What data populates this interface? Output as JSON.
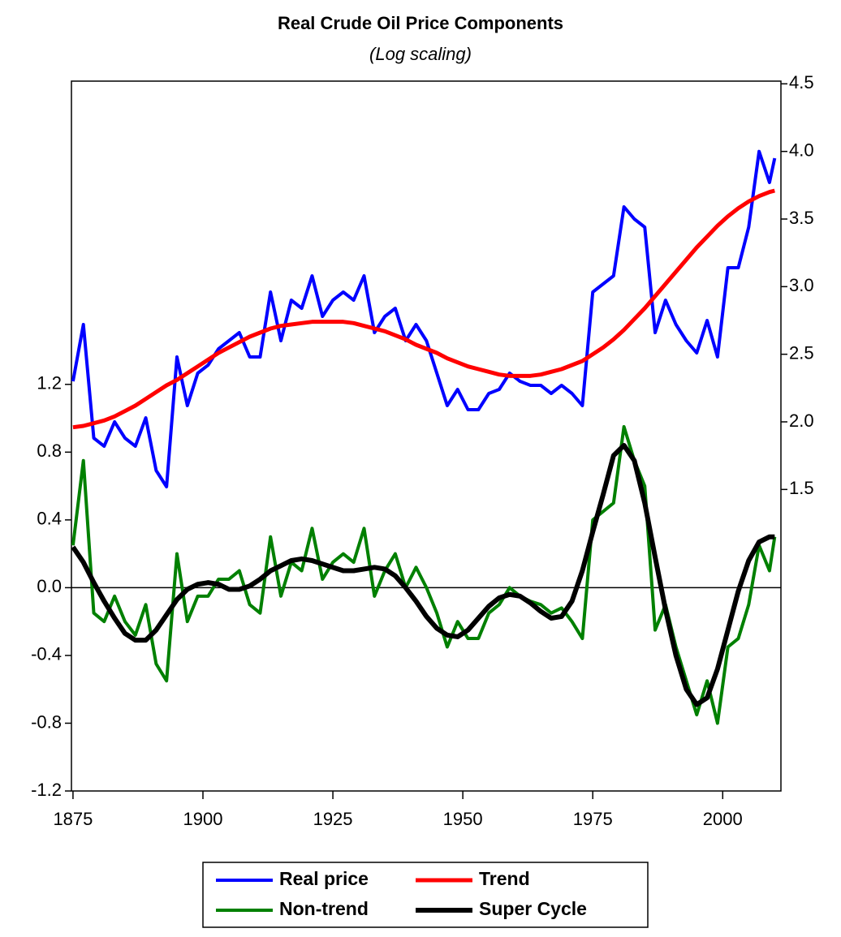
{
  "chart_data": {
    "type": "line",
    "title": "Real Crude Oil Price Components",
    "subtitle": "(Log scaling)",
    "x": [
      1875,
      1877,
      1879,
      1881,
      1883,
      1885,
      1887,
      1889,
      1891,
      1893,
      1895,
      1897,
      1899,
      1901,
      1903,
      1905,
      1907,
      1909,
      1911,
      1913,
      1915,
      1917,
      1919,
      1921,
      1923,
      1925,
      1927,
      1929,
      1931,
      1933,
      1935,
      1937,
      1939,
      1941,
      1943,
      1945,
      1947,
      1949,
      1951,
      1953,
      1955,
      1957,
      1959,
      1961,
      1963,
      1965,
      1967,
      1969,
      1971,
      1973,
      1975,
      1977,
      1979,
      1981,
      1983,
      1985,
      1987,
      1989,
      1991,
      1993,
      1995,
      1997,
      1999,
      2001,
      2003,
      2005,
      2007,
      2009,
      2010
    ],
    "series": [
      {
        "name": "Real price",
        "color": "#0000ff",
        "axis": "y2",
        "width": 4,
        "values": [
          2.3,
          2.72,
          1.88,
          1.82,
          2.0,
          1.88,
          1.82,
          2.03,
          1.64,
          1.52,
          2.48,
          2.12,
          2.36,
          2.42,
          2.54,
          2.6,
          2.66,
          2.48,
          2.48,
          2.96,
          2.6,
          2.9,
          2.84,
          3.08,
          2.78,
          2.9,
          2.96,
          2.9,
          3.08,
          2.66,
          2.78,
          2.84,
          2.6,
          2.72,
          2.6,
          2.36,
          2.12,
          2.24,
          2.09,
          2.09,
          2.21,
          2.24,
          2.36,
          2.3,
          2.27,
          2.27,
          2.21,
          2.27,
          2.21,
          2.12,
          2.96,
          3.02,
          3.08,
          3.59,
          3.5,
          3.44,
          2.66,
          2.9,
          2.72,
          2.6,
          2.51,
          2.75,
          2.48,
          3.14,
          3.14,
          3.44,
          4.0,
          3.77,
          3.95
        ]
      },
      {
        "name": "Trend",
        "color": "#ff0000",
        "axis": "y2",
        "width": 5,
        "values": [
          1.96,
          1.97,
          1.99,
          2.01,
          2.04,
          2.08,
          2.12,
          2.17,
          2.22,
          2.27,
          2.31,
          2.36,
          2.41,
          2.46,
          2.51,
          2.55,
          2.59,
          2.63,
          2.66,
          2.69,
          2.71,
          2.72,
          2.73,
          2.74,
          2.74,
          2.74,
          2.74,
          2.73,
          2.71,
          2.69,
          2.67,
          2.64,
          2.61,
          2.57,
          2.54,
          2.51,
          2.47,
          2.44,
          2.41,
          2.39,
          2.37,
          2.35,
          2.34,
          2.34,
          2.34,
          2.35,
          2.37,
          2.39,
          2.42,
          2.45,
          2.5,
          2.55,
          2.61,
          2.68,
          2.76,
          2.84,
          2.93,
          3.02,
          3.11,
          3.2,
          3.29,
          3.37,
          3.45,
          3.52,
          3.58,
          3.63,
          3.67,
          3.7,
          3.71
        ]
      },
      {
        "name": "Non-trend",
        "color": "#008000",
        "axis": "y",
        "width": 4,
        "values": [
          0.25,
          0.75,
          -0.15,
          -0.2,
          -0.05,
          -0.2,
          -0.28,
          -0.1,
          -0.45,
          -0.55,
          0.2,
          -0.2,
          -0.05,
          -0.05,
          0.05,
          0.05,
          0.1,
          -0.1,
          -0.15,
          0.3,
          -0.05,
          0.15,
          0.1,
          0.35,
          0.05,
          0.15,
          0.2,
          0.15,
          0.35,
          -0.05,
          0.1,
          0.2,
          0.0,
          0.12,
          0.0,
          -0.15,
          -0.35,
          -0.2,
          -0.3,
          -0.3,
          -0.15,
          -0.1,
          0.0,
          -0.05,
          -0.08,
          -0.1,
          -0.15,
          -0.12,
          -0.2,
          -0.3,
          0.4,
          0.45,
          0.5,
          0.95,
          0.75,
          0.6,
          -0.25,
          -0.1,
          -0.35,
          -0.55,
          -0.75,
          -0.55,
          -0.8,
          -0.35,
          -0.3,
          -0.1,
          0.25,
          0.1,
          0.3
        ]
      },
      {
        "name": "Super Cycle",
        "color": "#000000",
        "axis": "y",
        "width": 6,
        "values": [
          0.24,
          0.15,
          0.03,
          -0.08,
          -0.18,
          -0.27,
          -0.31,
          -0.31,
          -0.25,
          -0.16,
          -0.07,
          -0.01,
          0.02,
          0.03,
          0.02,
          -0.01,
          -0.01,
          0.01,
          0.05,
          0.1,
          0.13,
          0.16,
          0.17,
          0.16,
          0.14,
          0.12,
          0.1,
          0.1,
          0.11,
          0.12,
          0.11,
          0.07,
          0.0,
          -0.08,
          -0.17,
          -0.24,
          -0.28,
          -0.29,
          -0.25,
          -0.18,
          -0.11,
          -0.06,
          -0.04,
          -0.05,
          -0.09,
          -0.14,
          -0.18,
          -0.17,
          -0.08,
          0.1,
          0.33,
          0.55,
          0.78,
          0.84,
          0.75,
          0.5,
          0.18,
          -0.13,
          -0.4,
          -0.6,
          -0.69,
          -0.65,
          -0.48,
          -0.25,
          -0.02,
          0.16,
          0.27,
          0.3,
          0.3
        ]
      }
    ],
    "xlim": [
      1874.7,
      2011.2
    ],
    "xticks": [
      1875,
      1900,
      1925,
      1950,
      1975,
      2000
    ],
    "ylim": [
      -1.2,
      2.99
    ],
    "yticks": [
      1.2,
      0.8,
      0.4,
      {
        "value": 0,
        "label": "0.0"
      },
      -0.4,
      -0.8,
      -1.2
    ],
    "y2lim": [
      -0.73,
      4.52
    ],
    "y2ticks": [
      4.5,
      {
        "value": 4,
        "label": "4.0"
      },
      3.5,
      {
        "value": 3,
        "label": "3.0"
      },
      2.5,
      {
        "value": 2,
        "label": "2.0"
      },
      1.5
    ],
    "zero_line": true,
    "legend": "bottom"
  }
}
